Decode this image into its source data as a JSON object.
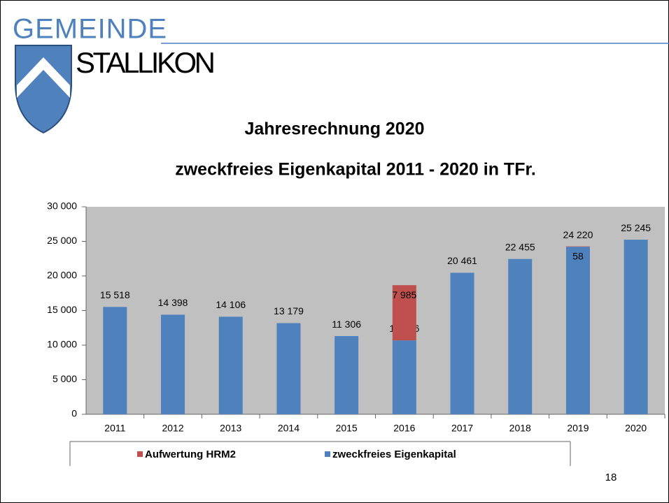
{
  "logo": {
    "top": "GEMEINDE",
    "bottom": "STALLIKON"
  },
  "page_number": "18",
  "chart_data": {
    "type": "bar",
    "stacked": true,
    "title": "Jahresrechnung 2020",
    "subtitle": "zweckfreies Eigenkapital 2011 - 2020 in TFr.",
    "categories": [
      "2011",
      "2012",
      "2013",
      "2014",
      "2015",
      "2016",
      "2017",
      "2018",
      "2019",
      "2020"
    ],
    "series": [
      {
        "name": "zweckfreies Eigenkapital",
        "color": "#4f81bd",
        "values": [
          15518,
          14398,
          14106,
          13179,
          11306,
          10686,
          20461,
          22455,
          24220,
          25245
        ],
        "value_labels": [
          "15 518",
          "14 398",
          "14 106",
          "13 179",
          "11 306",
          "10 686",
          "20 461",
          "22 455",
          "24 220",
          "25 245"
        ]
      },
      {
        "name": "Aufwertung HRM2",
        "color": "#c0504d",
        "values": [
          null,
          null,
          null,
          null,
          null,
          7985,
          null,
          null,
          58,
          null
        ],
        "value_labels": [
          null,
          null,
          null,
          null,
          null,
          "7 985",
          null,
          null,
          "58",
          null
        ]
      }
    ],
    "legend_order": [
      1,
      0
    ],
    "ylim": [
      0,
      30000
    ],
    "yticks": [
      0,
      {
        "value": 5000,
        "label": "5 000"
      },
      {
        "value": 10000,
        "label": "10 000"
      },
      {
        "value": 15000,
        "label": "15 000"
      },
      {
        "value": 20000,
        "label": "20 000"
      },
      {
        "value": 25000,
        "label": "25 000"
      },
      {
        "value": 30000,
        "label": "30 000"
      }
    ]
  }
}
